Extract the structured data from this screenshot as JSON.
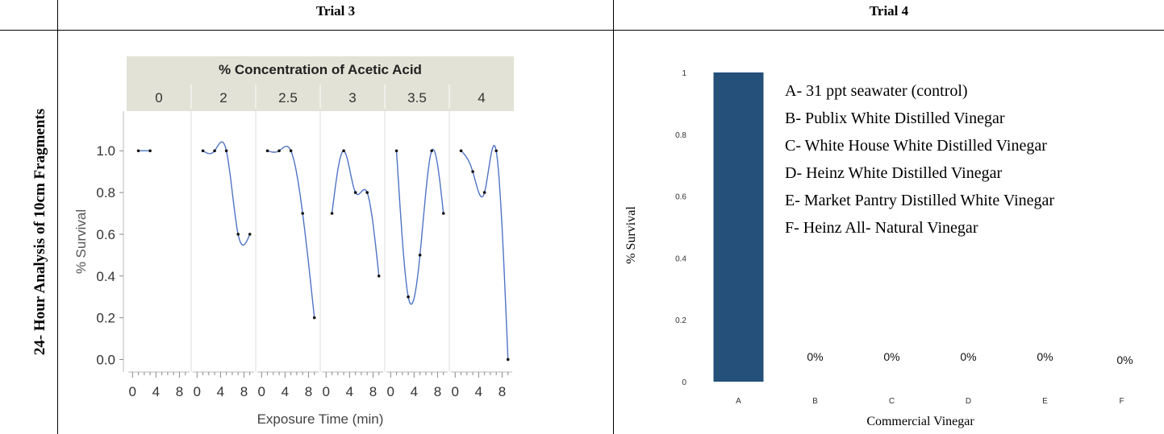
{
  "table": {
    "header_trial3": "Trial 3",
    "header_trial4": "Trial 4",
    "row_label": "24- Hour Analysis of 10cm Fragments"
  },
  "chart_data": [
    {
      "type": "scatter",
      "title": "% Concentration of Acetic Acid",
      "xlabel": "Exposure Time (min)",
      "ylabel": "% Survival",
      "ylim": [
        -0.06,
        1.19
      ],
      "xlim": [
        -1,
        10
      ],
      "y_ticks": [
        "0.0",
        "0.2",
        "0.4",
        "0.6",
        "0.8",
        "1.0"
      ],
      "x_ticks": [
        "0",
        "4",
        "8"
      ],
      "panel_header_bg": "#e2e2d6",
      "panel_bg": "#ffffff",
      "smoother_color": "#4f74c4",
      "grid": false,
      "panels": [
        {
          "label": "0",
          "x": [
            1,
            3
          ],
          "y": [
            1.0,
            1.0
          ]
        },
        {
          "label": "2",
          "x": [
            1,
            3,
            5,
            7,
            9
          ],
          "y": [
            1.0,
            1.0,
            1.0,
            0.6,
            0.6
          ]
        },
        {
          "label": "2.5",
          "x": [
            1,
            3,
            5,
            7,
            9
          ],
          "y": [
            1.0,
            1.0,
            1.0,
            0.7,
            0.2
          ]
        },
        {
          "label": "3",
          "x": [
            1,
            3,
            5,
            7,
            9
          ],
          "y": [
            0.7,
            1.0,
            0.8,
            0.8,
            0.4
          ]
        },
        {
          "label": "3.5",
          "x": [
            1,
            3,
            5,
            7,
            9
          ],
          "y": [
            1.0,
            0.3,
            0.5,
            1.0,
            0.7
          ]
        },
        {
          "label": "4",
          "x": [
            1,
            3,
            5,
            7,
            9
          ],
          "y": [
            1.0,
            0.9,
            0.8,
            1.0,
            0.0
          ]
        }
      ]
    },
    {
      "type": "bar",
      "xlabel": "Commercial Vinegar",
      "ylabel": "% Survival",
      "ylim": [
        0,
        1
      ],
      "y_ticks": [
        "0",
        "0.2",
        "0.4",
        "0.6",
        "0.8",
        "1"
      ],
      "categories": [
        "A",
        "B",
        "C",
        "D",
        "E",
        "F"
      ],
      "values": [
        1,
        0,
        0,
        0,
        0,
        0
      ],
      "data_labels": [
        "",
        "0%",
        "0%",
        "0%",
        "0%",
        "0%"
      ],
      "bar_color": "#24507a",
      "legend_location": "top-right",
      "legend": [
        "A- 31 ppt seawater (control)",
        "B- Publix White Distilled Vinegar",
        "C- White House White Distilled Vinegar",
        "D- Heinz White Distilled Vinegar",
        "E- Market Pantry Distilled White Vinegar",
        "F- Heinz All- Natural Vinegar"
      ]
    }
  ]
}
